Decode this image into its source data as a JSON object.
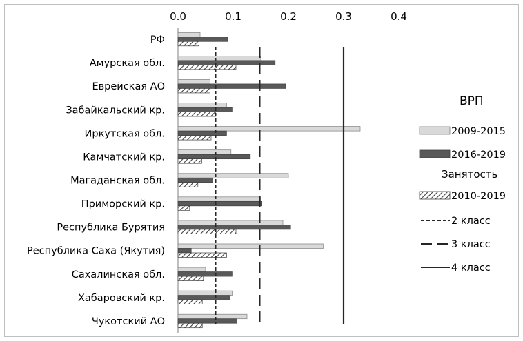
{
  "chart_data": {
    "type": "bar",
    "orientation": "horizontal",
    "x_axis": {
      "position": "top",
      "min": 0,
      "max": 0.4,
      "ticks": [
        "0.0",
        "0.1",
        "0.2",
        "0.3",
        "0.4"
      ]
    },
    "categories": [
      "РФ",
      "Амурская обл.",
      "Еврейская АО",
      "Забайкальский кр.",
      "Иркутская обл.",
      "Камчатский кр.",
      "Магаданская обл.",
      "Приморский кр.",
      "Республика Бурятия",
      "Республика Саха (Якутия)",
      "Сахалинская обл.",
      "Хабаровский кр.",
      "Чукотский АО"
    ],
    "series": [
      {
        "name": "2009-2015",
        "group": "ВРП",
        "color": "#d9d9d9",
        "style": "light",
        "values": [
          0.04,
          0.15,
          0.058,
          0.088,
          0.33,
          0.096,
          0.2,
          0.15,
          0.19,
          0.263,
          0.05,
          0.098,
          0.125
        ]
      },
      {
        "name": "2016-2019",
        "group": "ВРП",
        "color": "#595959",
        "style": "dark",
        "values": [
          0.09,
          0.176,
          0.195,
          0.098,
          0.088,
          0.131,
          0.063,
          0.152,
          0.204,
          0.024,
          0.098,
          0.094,
          0.107
        ]
      },
      {
        "name": "2010-2019",
        "group": "Занятость",
        "color": "#404040",
        "style": "hatched",
        "values": [
          0.038,
          0.105,
          0.058,
          0.068,
          0.06,
          0.043,
          0.036,
          0.021,
          0.105,
          0.088,
          0.046,
          0.044,
          0.044
        ]
      }
    ],
    "reference_lines": [
      {
        "name": "2 класс",
        "value": 0.068,
        "style": "short-dash"
      },
      {
        "name": "3 класс",
        "value": 0.148,
        "style": "long-dash"
      },
      {
        "name": "4 класс",
        "value": 0.3,
        "style": "solid"
      }
    ],
    "legend": {
      "placement": "right",
      "group_headers": [
        "ВРП",
        "Занятость"
      ]
    },
    "grid": false
  }
}
